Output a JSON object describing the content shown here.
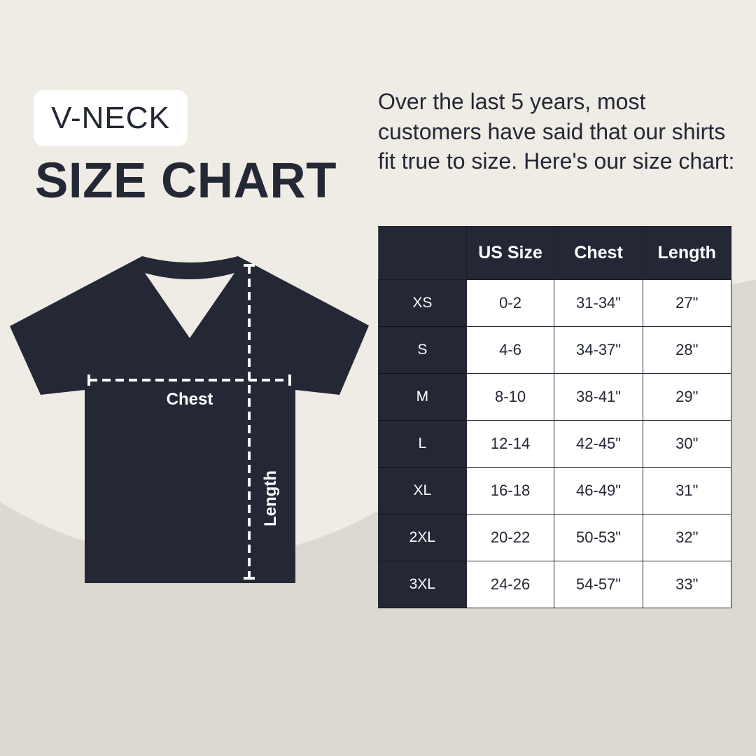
{
  "colors": {
    "background": "#efebe5",
    "background_lower": "#ddd8d1",
    "dark": "#242835",
    "light": "#ffffff"
  },
  "header": {
    "style_label": "V-NECK",
    "title": "SIZE CHART"
  },
  "description": "Over the last 5 years, most customers have said that our shirts fit true to size. Here's our size chart:",
  "diagram": {
    "chest_label": "Chest",
    "length_label": "Length"
  },
  "size_table": {
    "columns": [
      "",
      "US Size",
      "Chest",
      "Length"
    ],
    "rows": [
      {
        "size": "XS",
        "us_size": "0-2",
        "chest": "31-34\"",
        "length": "27\""
      },
      {
        "size": "S",
        "us_size": "4-6",
        "chest": "34-37\"",
        "length": "28\""
      },
      {
        "size": "M",
        "us_size": "8-10",
        "chest": "38-41\"",
        "length": "29\""
      },
      {
        "size": "L",
        "us_size": "12-14",
        "chest": "42-45\"",
        "length": "30\""
      },
      {
        "size": "XL",
        "us_size": "16-18",
        "chest": "46-49\"",
        "length": "31\""
      },
      {
        "size": "2XL",
        "us_size": "20-22",
        "chest": "50-53\"",
        "length": "32\""
      },
      {
        "size": "3XL",
        "us_size": "24-26",
        "chest": "54-57\"",
        "length": "33\""
      }
    ]
  }
}
